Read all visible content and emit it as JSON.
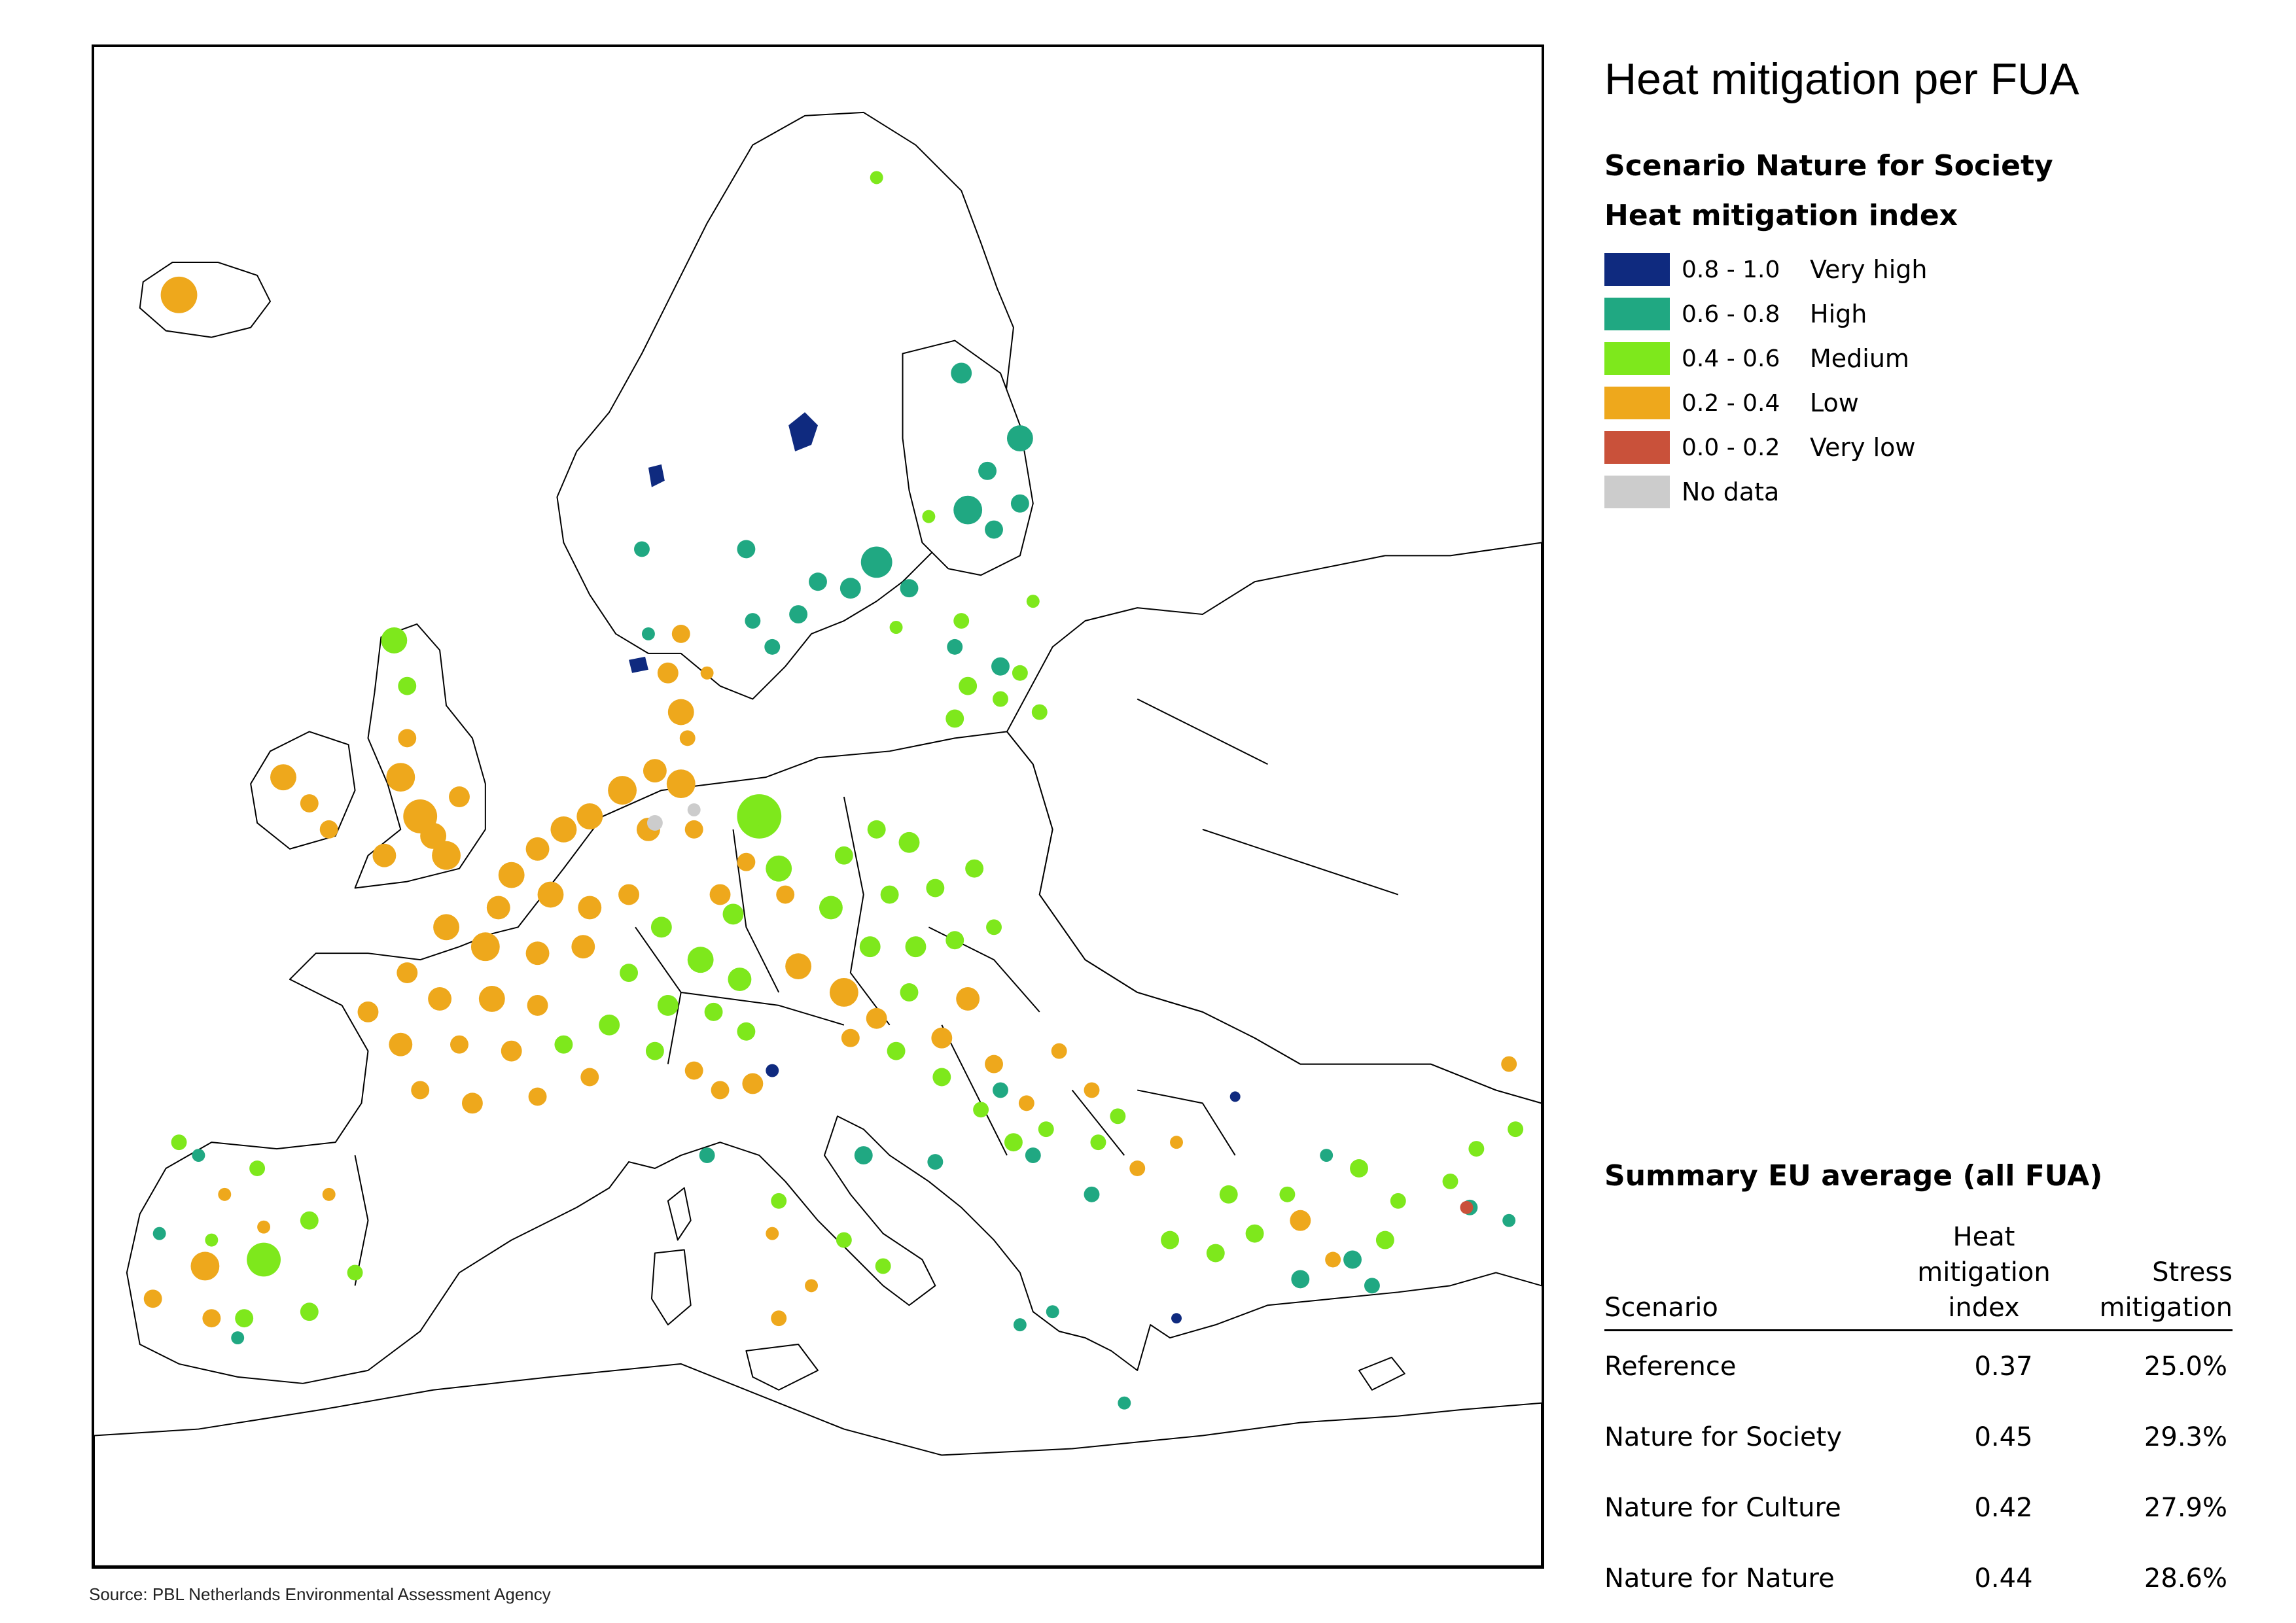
{
  "title": "Heat mitigation per FUA",
  "scenario": "Scenario Nature for Society",
  "legend": {
    "title": "Heat mitigation index",
    "items": [
      {
        "range": "0.8 - 1.0",
        "label": "Very high",
        "color": "#0f2a7f"
      },
      {
        "range": "0.6 - 0.8",
        "label": "High",
        "color": "#20a882"
      },
      {
        "range": "0.4 - 0.6",
        "label": "Medium",
        "color": "#7ee81c"
      },
      {
        "range": "0.2 - 0.4",
        "label": "Low",
        "color": "#eea81c"
      },
      {
        "range": "0.0 - 0.2",
        "label": "Very low",
        "color": "#c9513a"
      },
      {
        "range": "",
        "label": "No data",
        "color": "#cccccc"
      }
    ]
  },
  "summary": {
    "title": "Summary EU average (all FUA)",
    "headers": {
      "scenario": "Scenario",
      "index_line1": "Heat mitigation",
      "index_line2": "index",
      "stress_line1": "Stress",
      "stress_line2": "mitigation"
    },
    "rows": [
      {
        "scenario": "Reference",
        "index": "0.37",
        "stress": "25.0%"
      },
      {
        "scenario": "Nature for Society",
        "index": "0.45",
        "stress": "29.3%"
      },
      {
        "scenario": "Nature for Culture",
        "index": "0.42",
        "stress": "27.9%"
      },
      {
        "scenario": "Nature for Nature",
        "index": "0.44",
        "stress": "28.6%"
      }
    ]
  },
  "source": "Source: PBL Netherlands Environmental Assessment Agency"
}
